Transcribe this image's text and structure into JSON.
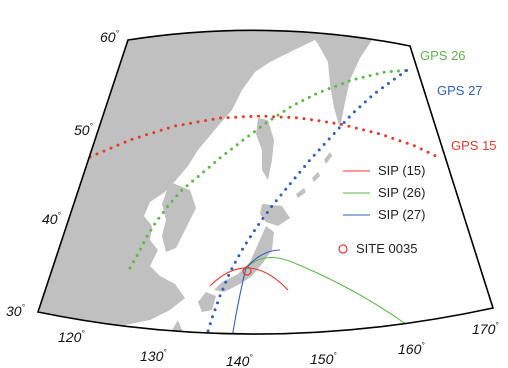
{
  "map": {
    "lat_labels": [
      "60",
      "50",
      "40",
      "30"
    ],
    "lon_labels": [
      "120",
      "130",
      "140",
      "150",
      "160",
      "170"
    ],
    "degree_symbol": "°"
  },
  "tracks": [
    {
      "id": "gps26",
      "label": "GPS 26",
      "color": "#5cb946"
    },
    {
      "id": "gps27",
      "label": "GPS 27",
      "color": "#2f5fbf"
    },
    {
      "id": "gps15",
      "label": "GPS 15",
      "color": "#e8392c"
    }
  ],
  "legend": {
    "items": [
      {
        "label": "SIP (15)",
        "color": "#e8392c"
      },
      {
        "label": "SIP (26)",
        "color": "#5cb946"
      },
      {
        "label": "SIP (27)",
        "color": "#2f5fbf"
      }
    ],
    "site": {
      "label": "SITE 0035",
      "color": "#e8392c"
    }
  },
  "colors": {
    "land": "#c0c0c0",
    "sea": "#ffffff",
    "frame": "#000000"
  }
}
